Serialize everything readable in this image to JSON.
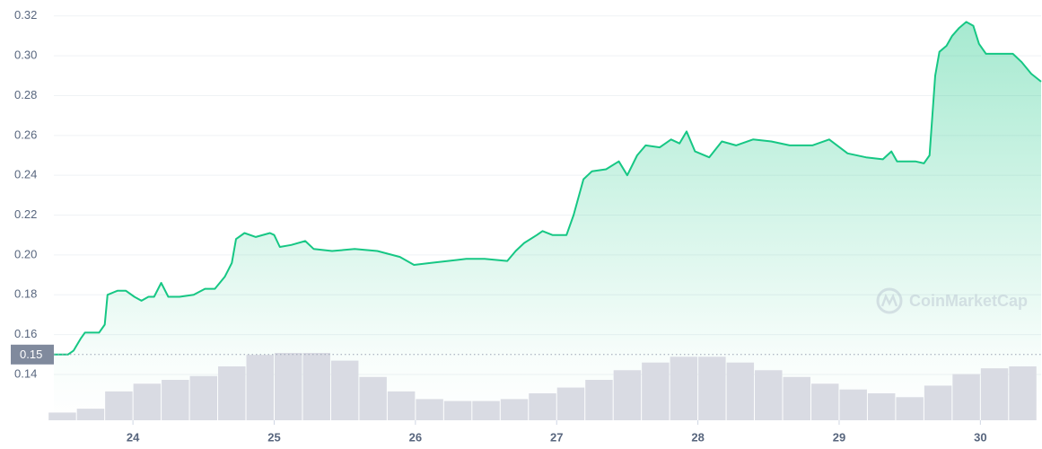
{
  "chart_data": {
    "type": "line",
    "color": "#16c784",
    "x": [
      23.44,
      23.54,
      23.58,
      23.63,
      23.66,
      23.76,
      23.8,
      23.82,
      23.89,
      23.95,
      24.01,
      24.06,
      24.11,
      24.15,
      24.2,
      24.25,
      24.33,
      24.43,
      24.51,
      24.58,
      24.65,
      24.7,
      24.73,
      24.79,
      24.87,
      24.97,
      25.0,
      25.04,
      25.12,
      25.22,
      25.28,
      25.41,
      25.57,
      25.73,
      25.89,
      25.99,
      26.11,
      26.23,
      26.36,
      26.49,
      26.65,
      26.71,
      26.77,
      26.86,
      26.9,
      26.97,
      27.07,
      27.12,
      27.19,
      27.25,
      27.35,
      27.44,
      27.5,
      27.57,
      27.63,
      27.73,
      27.81,
      27.87,
      27.92,
      27.98,
      28.08,
      28.17,
      28.27,
      28.39,
      28.52,
      28.65,
      28.81,
      28.93,
      29.06,
      29.19,
      29.31,
      29.37,
      29.41,
      29.54,
      29.6,
      29.64,
      29.68,
      29.71,
      29.76,
      29.8,
      29.85,
      29.9,
      29.95,
      29.99,
      30.04,
      30.14,
      30.23,
      30.29,
      30.36,
      30.43
    ],
    "values": [
      0.15,
      0.15,
      0.152,
      0.158,
      0.161,
      0.161,
      0.165,
      0.18,
      0.182,
      0.182,
      0.179,
      0.177,
      0.179,
      0.179,
      0.186,
      0.179,
      0.179,
      0.18,
      0.183,
      0.183,
      0.189,
      0.196,
      0.208,
      0.211,
      0.209,
      0.211,
      0.21,
      0.204,
      0.205,
      0.207,
      0.203,
      0.202,
      0.203,
      0.202,
      0.199,
      0.195,
      0.196,
      0.197,
      0.198,
      0.198,
      0.197,
      0.202,
      0.206,
      0.21,
      0.212,
      0.21,
      0.21,
      0.22,
      0.238,
      0.242,
      0.243,
      0.247,
      0.24,
      0.25,
      0.255,
      0.254,
      0.258,
      0.256,
      0.262,
      0.252,
      0.249,
      0.257,
      0.255,
      0.258,
      0.257,
      0.255,
      0.255,
      0.258,
      0.251,
      0.249,
      0.248,
      0.252,
      0.247,
      0.247,
      0.246,
      0.25,
      0.29,
      0.302,
      0.305,
      0.31,
      0.314,
      0.317,
      0.315,
      0.306,
      0.301,
      0.301,
      0.301,
      0.297,
      0.291,
      0.287
    ],
    "xlim": [
      23.44,
      30.43
    ],
    "xticks": [
      24,
      25,
      26,
      27,
      28,
      29,
      30
    ],
    "ylim": [
      0.117,
      0.328
    ],
    "yticks": [
      0.14,
      0.16,
      0.18,
      {
        "value": 0.2,
        "label": "0.20"
      },
      0.22,
      0.24,
      0.26,
      0.28,
      {
        "value": 0.3,
        "label": "0.30"
      },
      0.32
    ],
    "grid": true,
    "current_price": 0.15,
    "watermark": "CoinMarketCap",
    "volume": {
      "color": "#d9dbe3",
      "x": [
        23.5,
        23.7,
        23.9,
        24.1,
        24.3,
        24.5,
        24.7,
        24.9,
        25.1,
        25.3,
        25.5,
        25.7,
        25.9,
        26.1,
        26.3,
        26.5,
        26.7,
        26.9,
        27.1,
        27.3,
        27.5,
        27.7,
        27.9,
        28.1,
        28.3,
        28.5,
        28.7,
        28.9,
        29.1,
        29.3,
        29.5,
        29.7,
        29.9,
        30.1,
        30.3
      ],
      "values": [
        8,
        12,
        30,
        38,
        42,
        46,
        56,
        68,
        70,
        70,
        62,
        45,
        30,
        22,
        20,
        20,
        22,
        28,
        34,
        42,
        52,
        60,
        66,
        66,
        60,
        52,
        45,
        38,
        32,
        28,
        24,
        36,
        48,
        54,
        56
      ]
    }
  }
}
